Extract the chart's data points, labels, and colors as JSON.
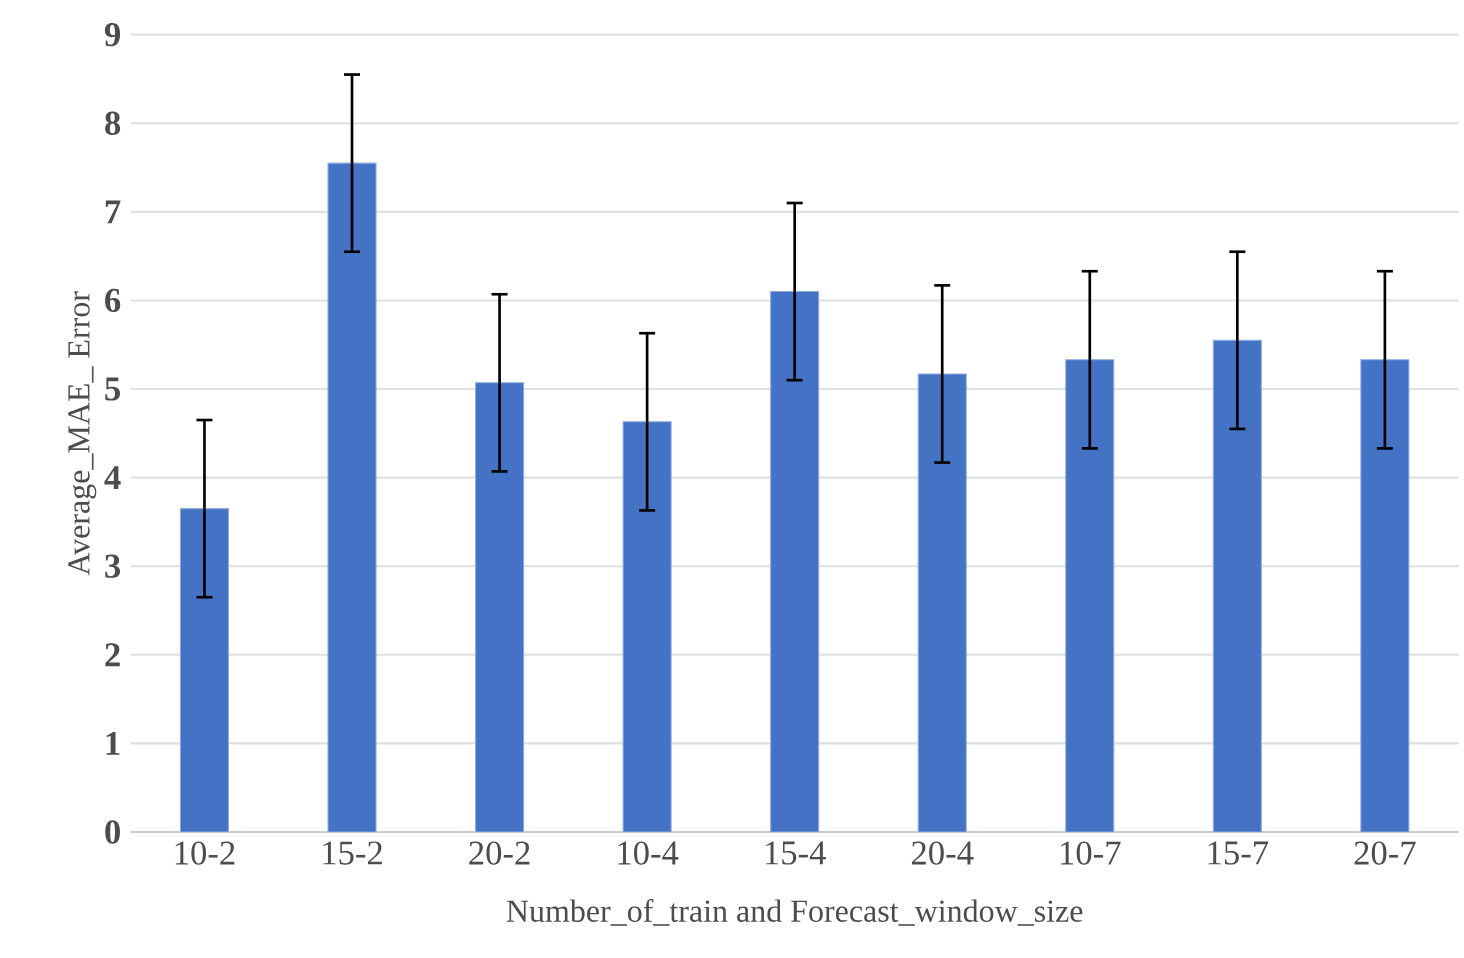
{
  "chart_data": {
    "type": "bar",
    "xlabel": "Number_of_train and  Forecast_window_size",
    "ylabel": "Average_MAE_ Error",
    "categories": [
      "10-2",
      "15-2",
      "20-2",
      "10-4",
      "15-4",
      "20-4",
      "10-7",
      "15-7",
      "20-7"
    ],
    "values": [
      3.65,
      7.55,
      5.07,
      4.63,
      6.1,
      5.17,
      5.33,
      5.55,
      5.33
    ],
    "errors": [
      1,
      1,
      1,
      1,
      1,
      1,
      1,
      1,
      1
    ],
    "color": "#4472c4",
    "ylim": [
      0,
      9
    ],
    "yticks": [
      0,
      1,
      2,
      3,
      4,
      5,
      6,
      7,
      8,
      9
    ],
    "grid": "y"
  }
}
